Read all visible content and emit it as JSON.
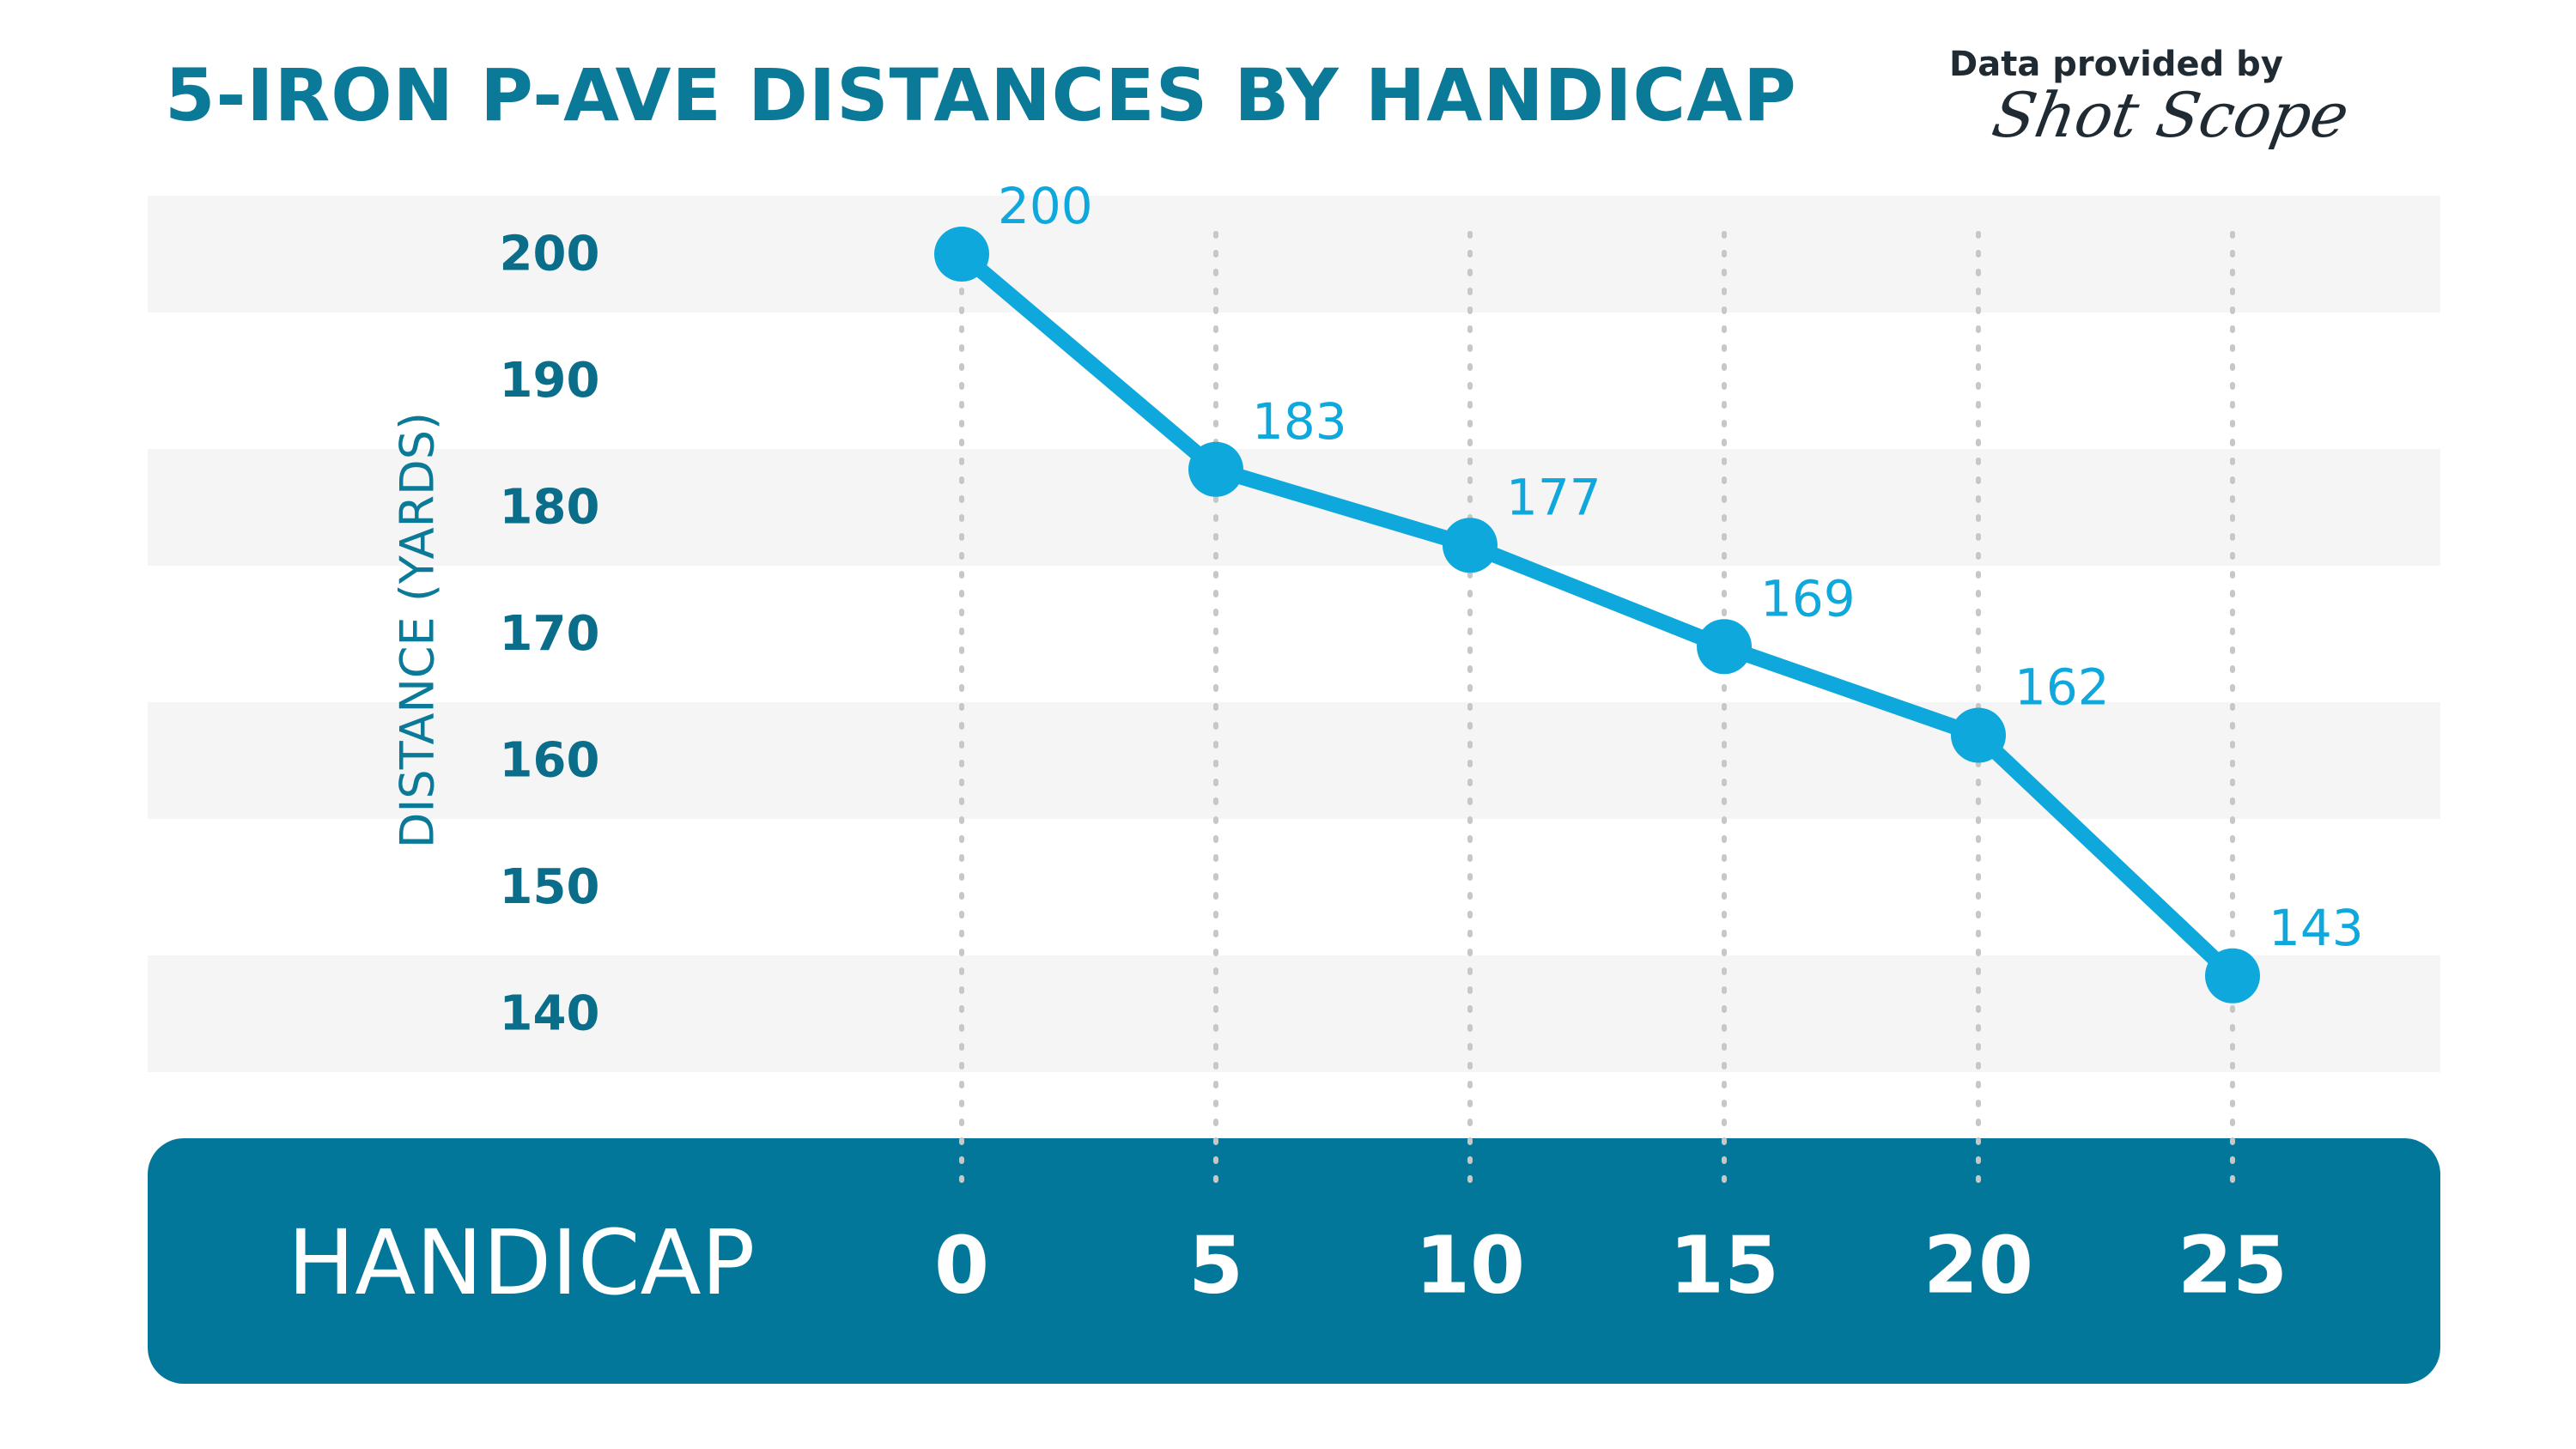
{
  "header": {
    "title": "5-IRON P-AVE DISTANCES BY HANDICAP",
    "provided_by": "Data provided by",
    "brand": "Shot Scope"
  },
  "chart_data": {
    "type": "line",
    "title": "5-IRON P-AVE DISTANCES BY HANDICAP",
    "xlabel": "HANDICAP",
    "ylabel": "DISTANCE (YARDS)",
    "x": [
      0,
      5,
      10,
      15,
      20,
      25
    ],
    "x_tick_labels": [
      "0",
      "5",
      "10",
      "15",
      "20",
      "25"
    ],
    "y_tick_labels": [
      "200",
      "190",
      "180",
      "170",
      "160",
      "150",
      "140"
    ],
    "ylim": [
      140,
      200
    ],
    "series": [
      {
        "values": [
          200,
          183,
          177,
          169,
          162,
          143
        ]
      }
    ],
    "data_labels": [
      "200",
      "183",
      "177",
      "169",
      "162",
      "143"
    ],
    "grid": "alternating horizontal bands with dotted vertical guides",
    "colors": {
      "line": "#0ea8dd",
      "title": "#0a7a98",
      "axis_bar": "#03779a",
      "band": "#f5f5f5"
    }
  }
}
